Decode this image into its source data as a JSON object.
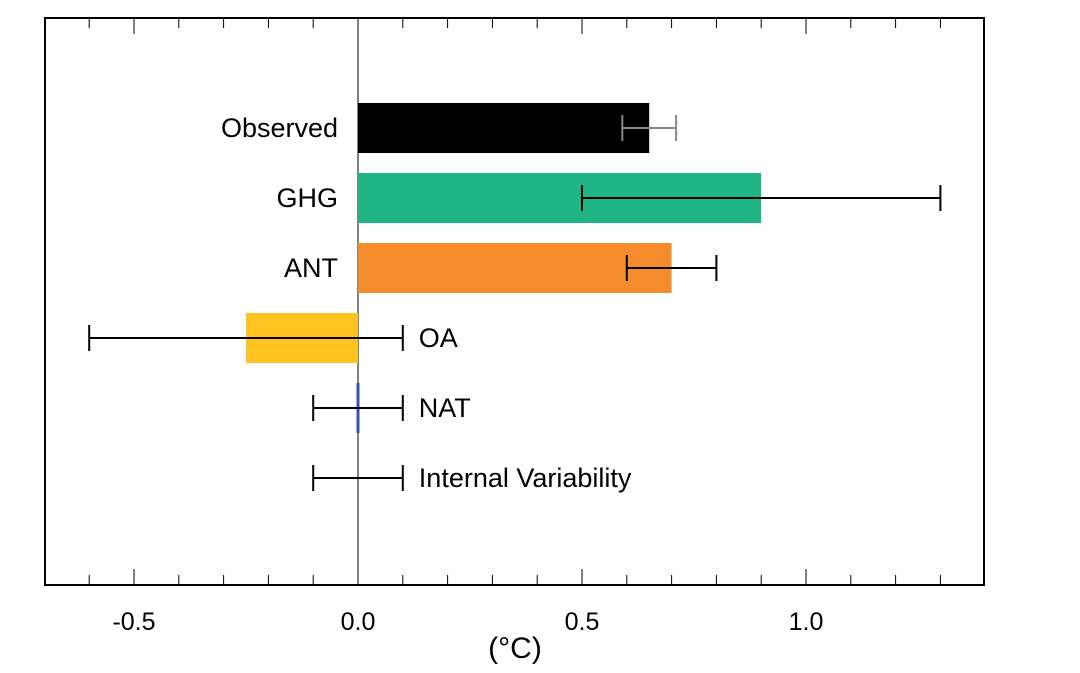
{
  "chart_data": {
    "type": "bar",
    "orientation": "horizontal",
    "xlabel": "(°C)",
    "xlim": [
      -0.7,
      1.4
    ],
    "xticks": [
      -0.5,
      0.0,
      0.5,
      1.0
    ],
    "xtick_labels": [
      "-0.5",
      "0.0",
      "0.5",
      "1.0"
    ],
    "minor_tick_step": 0.1,
    "grid": false,
    "categories": [
      {
        "label": "Observed",
        "value": 0.65,
        "err_low": 0.59,
        "err_high": 0.71,
        "color": "#000000",
        "err_color": "#888888",
        "label_side": "left"
      },
      {
        "label": "GHG",
        "value": 0.9,
        "err_low": 0.5,
        "err_high": 1.3,
        "color": "#1fb584",
        "err_color": "#000000",
        "label_side": "left"
      },
      {
        "label": "ANT",
        "value": 0.7,
        "err_low": 0.6,
        "err_high": 0.8,
        "color": "#f58d2d",
        "err_color": "#000000",
        "label_side": "left"
      },
      {
        "label": "OA",
        "value": -0.25,
        "err_low": -0.6,
        "err_high": 0.1,
        "color": "#fec321",
        "err_color": "#000000",
        "label_side": "right"
      },
      {
        "label": "NAT",
        "value": 0.0,
        "err_low": -0.1,
        "err_high": 0.1,
        "color": "#3355aa",
        "err_color": "#000000",
        "label_side": "right"
      },
      {
        "label": "Internal Variability",
        "value": null,
        "err_low": -0.1,
        "err_high": 0.1,
        "color": null,
        "err_color": "#000000",
        "label_side": "right"
      }
    ]
  }
}
